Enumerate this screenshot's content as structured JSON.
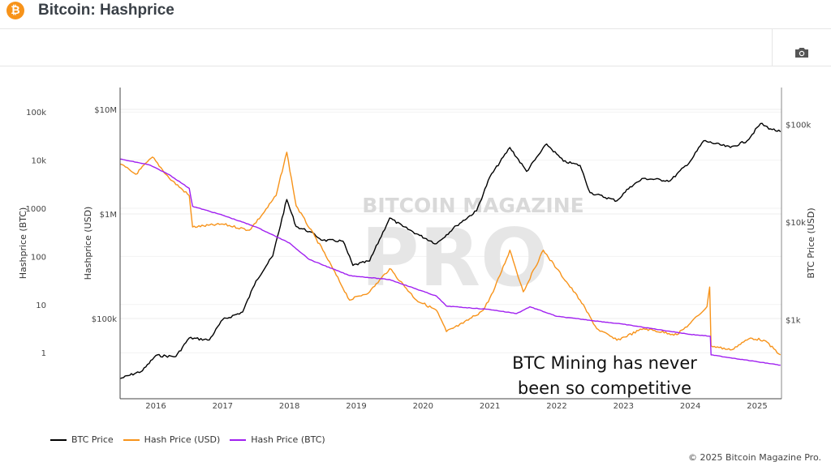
{
  "header": {
    "title": "Bitcoin: Hashprice",
    "icon": "bitcoin-icon"
  },
  "toolbar": {
    "camera_icon": "camera-icon"
  },
  "footer": {
    "copyright": "© 2025 Bitcoin Magazine Pro."
  },
  "watermark": {
    "line1": "BITCOIN MAGAZINE",
    "line2": "PRO"
  },
  "annotation": {
    "line1": "BTC Mining has never",
    "line2": "been so competitive"
  },
  "colors": {
    "btc_price": "#000000",
    "hash_usd": "#f7931a",
    "hash_btc": "#a020f0"
  },
  "chart_data": {
    "type": "line",
    "grid": true,
    "legend_position": "bottom-left",
    "xlim": [
      2015.47,
      2025.37
    ],
    "x_ticks": [
      "2016",
      "2017",
      "2018",
      "2019",
      "2020",
      "2021",
      "2022",
      "2023",
      "2024",
      "2025"
    ],
    "axes": {
      "hashprice_btc": {
        "label": "Hashprice (BTC)",
        "scale": "log",
        "ticks": [
          "100k",
          "10k",
          "1000",
          "100",
          "10",
          "1"
        ]
      },
      "hashprice_usd": {
        "label": "Hashprice (USD)",
        "scale": "log",
        "ticks": [
          "$10M",
          "$1M",
          "$100k"
        ]
      },
      "btc_price": {
        "label": "BTC Price (USD)",
        "scale": "log",
        "ticks": [
          "$100k",
          "$10k",
          "$1k"
        ]
      }
    },
    "series": [
      {
        "name": "BTC Price",
        "axis": "btc_price",
        "x": [
          2015.47,
          2015.8,
          2016.0,
          2016.3,
          2016.5,
          2016.8,
          2017.0,
          2017.3,
          2017.5,
          2017.75,
          2017.96,
          2018.1,
          2018.3,
          2018.5,
          2018.8,
          2018.95,
          2019.2,
          2019.5,
          2019.7,
          2019.95,
          2020.2,
          2020.5,
          2020.8,
          2021.0,
          2021.3,
          2021.55,
          2021.85,
          2022.1,
          2022.35,
          2022.5,
          2022.9,
          2023.1,
          2023.3,
          2023.7,
          2024.0,
          2024.2,
          2024.6,
          2024.85,
          2025.05,
          2025.2,
          2025.35
        ],
        "y": [
          250,
          300,
          430,
          420,
          650,
          620,
          1000,
          1200,
          2500,
          4500,
          17000,
          9000,
          8000,
          6500,
          6400,
          3600,
          4000,
          11000,
          9000,
          7300,
          6000,
          9200,
          13000,
          29000,
          58000,
          33000,
          63000,
          42000,
          38000,
          20000,
          16500,
          23000,
          28000,
          26500,
          42000,
          68000,
          58000,
          68000,
          102000,
          90000,
          84000
        ]
      },
      {
        "name": "Hash Price (USD)",
        "axis": "hashprice_usd",
        "x": [
          2015.47,
          2015.7,
          2015.95,
          2016.2,
          2016.5,
          2016.55,
          2017.0,
          2017.4,
          2017.6,
          2017.8,
          2017.96,
          2018.1,
          2018.5,
          2018.9,
          2019.2,
          2019.5,
          2019.9,
          2020.2,
          2020.35,
          2020.6,
          2020.9,
          2021.05,
          2021.3,
          2021.5,
          2021.8,
          2022.0,
          2022.35,
          2022.6,
          2022.9,
          2023.3,
          2023.8,
          2024.0,
          2024.25,
          2024.29,
          2024.31,
          2024.6,
          2024.9,
          2025.1,
          2025.35
        ],
        "y": [
          3000000,
          2400000,
          3500000,
          2200000,
          1500000,
          750000,
          800000,
          700000,
          1000000,
          1500000,
          3900000,
          1200000,
          450000,
          150000,
          180000,
          300000,
          150000,
          120000,
          75000,
          90000,
          120000,
          180000,
          450000,
          180000,
          450000,
          300000,
          150000,
          80000,
          62000,
          80000,
          70000,
          90000,
          130000,
          200000,
          55000,
          50000,
          65000,
          62000,
          45000
        ]
      },
      {
        "name": "Hash Price (BTC)",
        "axis": "hashprice_btc",
        "x": [
          2015.47,
          2015.9,
          2016.2,
          2016.5,
          2016.55,
          2017.0,
          2017.5,
          2018.0,
          2018.3,
          2018.9,
          2019.5,
          2020.2,
          2020.35,
          2021.0,
          2021.4,
          2021.6,
          2022.0,
          2023.0,
          2024.0,
          2024.3,
          2024.31,
          2025.0,
          2025.35
        ],
        "y": [
          10500,
          8000,
          5000,
          2600,
          1100,
          720,
          410,
          190,
          86,
          40,
          33,
          15,
          9.3,
          7.9,
          6.5,
          9,
          5.7,
          3.9,
          2.4,
          2.2,
          0.9,
          0.65,
          0.55
        ]
      }
    ]
  }
}
